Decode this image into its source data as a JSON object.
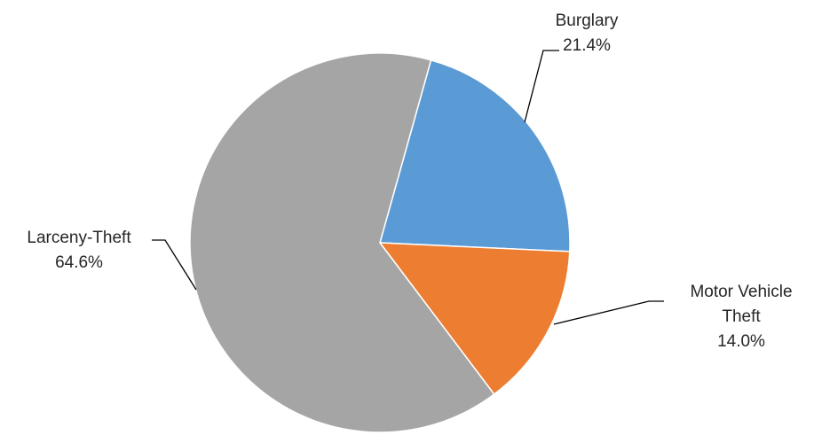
{
  "chart_data": {
    "type": "pie",
    "title": "",
    "start_angle_deg": 74.4,
    "direction": "clockwise",
    "slices": [
      {
        "name": "Burglary",
        "label_lines": [
          "Burglary"
        ],
        "percent_label": "21.4%",
        "value": 21.4,
        "color": "#5b9bd5"
      },
      {
        "name": "Motor Vehicle Theft",
        "label_lines": [
          "Motor Vehicle",
          "Theft"
        ],
        "percent_label": "14.0%",
        "value": 14.0,
        "color": "#ed7d31"
      },
      {
        "name": "Larceny-Theft",
        "label_lines": [
          "Larceny-Theft"
        ],
        "percent_label": "64.6%",
        "value": 64.6,
        "color": "#a5a5a5"
      }
    ],
    "legend": "none",
    "data_labels": "outside with leader lines"
  }
}
